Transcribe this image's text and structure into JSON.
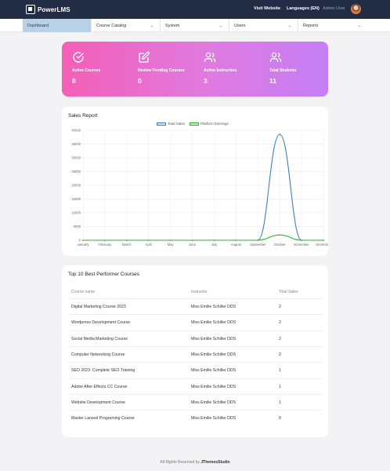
{
  "header": {
    "logo_text": "PowerLMS",
    "visit_website": "Visit Website",
    "languages": "Languages (EN)",
    "user": "Admin User"
  },
  "menu": {
    "items": [
      {
        "label": "Dashboard"
      },
      {
        "label": "Course Catalog"
      },
      {
        "label": "System"
      },
      {
        "label": "Users"
      },
      {
        "label": "Reports"
      }
    ]
  },
  "stats": [
    {
      "label": "Active Courses",
      "value": "8",
      "icon": "check-circle-icon"
    },
    {
      "label": "Review Pending Courses",
      "value": "0",
      "icon": "edit-icon"
    },
    {
      "label": "Active Instructors",
      "value": "3",
      "icon": "users-icon"
    },
    {
      "label": "Total Students",
      "value": "11",
      "icon": "users-icon"
    }
  ],
  "sales": {
    "title": "Sales Report"
  },
  "chart_data": {
    "type": "line",
    "categories": [
      "January",
      "February",
      "March",
      "April",
      "May",
      "June",
      "July",
      "August",
      "September",
      "October",
      "November",
      "December"
    ],
    "series": [
      {
        "name": "Total Sales",
        "color": "#3d7fb8",
        "values": [
          0,
          0,
          0,
          0,
          0,
          0,
          0,
          0,
          0,
          38500,
          0,
          0
        ]
      },
      {
        "name": "Platform Earnings",
        "color": "#2fb12f",
        "values": [
          0,
          0,
          0,
          0,
          0,
          0,
          0,
          0,
          0,
          1900,
          0,
          0
        ]
      }
    ],
    "yticks": [
      0,
      5000,
      10000,
      15000,
      20000,
      25000,
      30000,
      35000,
      40000
    ],
    "ylim": [
      0,
      40000
    ],
    "legend": "top-center",
    "grid": true
  },
  "courses": {
    "title": "Top 10 Best Performer Courses",
    "columns": [
      "Course name",
      "Instructor",
      "Total Sales"
    ],
    "rows": [
      [
        "Digital Marketing Course 2023",
        "Miss Emilie Schiller DDS",
        "2"
      ],
      [
        "Wordpress Development Course",
        "Miss Emilie Schiller DDS",
        "2"
      ],
      [
        "Social Media Marketing Course",
        "Miss Emilie Schiller DDS",
        "2"
      ],
      [
        "Computer Networking Course",
        "Miss Emilie Schiller DDS",
        "2"
      ],
      [
        "SEO 2023: Complete SEO Training",
        "Miss Emilie Schiller DDS",
        "1"
      ],
      [
        "Adobe After Effects CC Course",
        "Miss Emilie Schiller DDS",
        "1"
      ],
      [
        "Website Development Course",
        "Miss Emilie Schiller DDS",
        "1"
      ],
      [
        "Master Laravel Programing Course",
        "Miss Emilie Schiller DDS",
        "0"
      ]
    ]
  },
  "footer": {
    "prefix": "All Rights Reserved by",
    "brand": "JThemesStudio"
  }
}
